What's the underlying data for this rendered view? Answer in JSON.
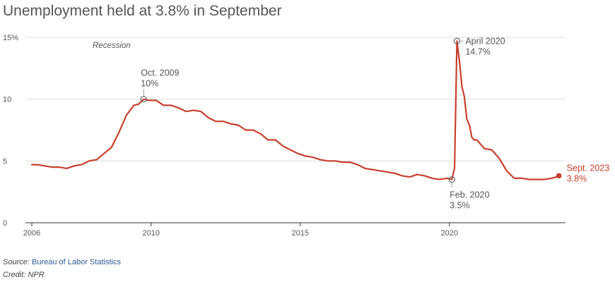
{
  "title": "Unemployment held at 3.8% in September",
  "source_label": "Source:",
  "source_link": "Bureau of Labor Statistics",
  "credit": "Credit: NPR",
  "chart_data": {
    "type": "line",
    "title": "Unemployment held at 3.8% in September",
    "xlabel": "",
    "ylabel": "",
    "x_ticks": [
      "2006",
      "2010",
      "2015",
      "2020"
    ],
    "y_ticks": [
      "0",
      "5",
      "10",
      "15%"
    ],
    "xlim": [
      2006,
      2023.9
    ],
    "ylim": [
      0,
      15
    ],
    "grid": "horizontal",
    "series_color": "#c8402a",
    "series": [
      {
        "values_x": [
          2006.0,
          2006.17,
          2006.42,
          2006.67,
          2006.92,
          2007.17,
          2007.42,
          2007.67,
          2007.92,
          2008.17,
          2008.42,
          2008.67,
          2008.92,
          2009.17,
          2009.42,
          2009.58,
          2009.75,
          2009.92,
          2010.17,
          2010.42,
          2010.67,
          2010.92,
          2011.17,
          2011.42,
          2011.67,
          2011.92,
          2012.17,
          2012.42,
          2012.67,
          2012.92,
          2013.17,
          2013.42,
          2013.67,
          2013.92,
          2014.17,
          2014.42,
          2014.67,
          2014.92,
          2015.17,
          2015.42,
          2015.67,
          2015.92,
          2016.17,
          2016.42,
          2016.67,
          2016.92,
          2017.17,
          2017.42,
          2017.67,
          2017.92,
          2018.17,
          2018.42,
          2018.67,
          2018.92,
          2019.17,
          2019.42,
          2019.67,
          2019.92,
          2020.08,
          2020.17,
          2020.25,
          2020.33,
          2020.42,
          2020.5,
          2020.58,
          2020.67,
          2020.75,
          2020.83,
          2020.92,
          2021.17,
          2021.42,
          2021.67,
          2021.92,
          2022.17,
          2022.42,
          2022.67,
          2022.92,
          2023.17,
          2023.42,
          2023.58,
          2023.67
        ],
        "values": [
          4.7,
          4.7,
          4.6,
          4.5,
          4.5,
          4.4,
          4.6,
          4.7,
          5.0,
          5.1,
          5.6,
          6.1,
          7.3,
          8.7,
          9.5,
          9.6,
          10.0,
          9.9,
          9.9,
          9.5,
          9.5,
          9.3,
          9.0,
          9.1,
          9.0,
          8.5,
          8.2,
          8.2,
          8.0,
          7.9,
          7.5,
          7.5,
          7.2,
          6.7,
          6.7,
          6.2,
          5.9,
          5.6,
          5.4,
          5.3,
          5.1,
          5.0,
          5.0,
          4.9,
          4.9,
          4.7,
          4.4,
          4.3,
          4.2,
          4.1,
          4.0,
          3.8,
          3.7,
          3.9,
          3.8,
          3.6,
          3.5,
          3.6,
          3.5,
          4.4,
          14.7,
          13.2,
          11.0,
          10.2,
          8.4,
          7.9,
          6.9,
          6.7,
          6.7,
          6.0,
          5.9,
          5.2,
          4.2,
          3.6,
          3.6,
          3.5,
          3.5,
          3.5,
          3.6,
          3.7,
          3.8
        ]
      }
    ],
    "annotations": [
      {
        "label": "Oct. 2009",
        "value_text": "10%",
        "x": 2009.75,
        "y": 10.0
      },
      {
        "label": "April 2020",
        "value_text": "14.7%",
        "x": 2020.25,
        "y": 14.7
      },
      {
        "label": "Feb. 2020",
        "value_text": "3.5%",
        "x": 2020.08,
        "y": 3.5
      },
      {
        "label": "Sept. 2023",
        "value_text": "3.8%",
        "x": 2023.67,
        "y": 3.8
      }
    ],
    "recession_label": "Recession"
  }
}
